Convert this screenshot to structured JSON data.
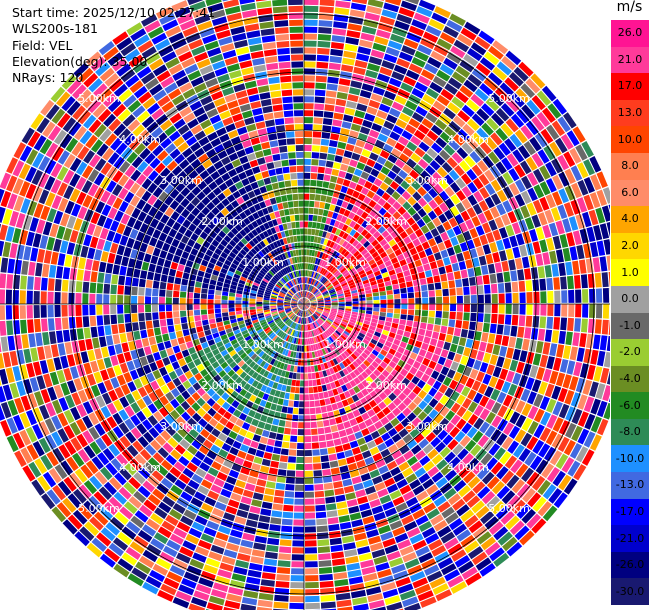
{
  "header": {
    "start_time": "Start time: 2025/12/10 02:27:41",
    "instrument": "WLS200s-181",
    "field": "Field: VEL",
    "elevation": "Elevation(deg): 35.00",
    "nrays": "NRays: 120"
  },
  "colorbar": {
    "unit": "m/s",
    "ticks": [
      "26.0",
      "21.0",
      "17.0",
      "13.0",
      "10.0",
      "8.0",
      "6.0",
      "4.0",
      "2.0",
      "1.0",
      "0.0",
      "-1.0",
      "-2.0",
      "-4.0",
      "-6.0",
      "-8.0",
      "-10.0",
      "-13.0",
      "-17.0",
      "-21.0",
      "-26.0",
      "-30.0"
    ],
    "colors": [
      "#ff1493",
      "#ff3a9a",
      "#ff0000",
      "#ff3c1e",
      "#ff4500",
      "#ff7f50",
      "#ff8c69",
      "#ffa500",
      "#ffd700",
      "#ffff00",
      "#a0a0a0",
      "#696969",
      "#9acd32",
      "#6b8e23",
      "#228b22",
      "#2e8b57",
      "#1e90ff",
      "#4169e1",
      "#0000ff",
      "#0000cd",
      "#000080",
      "#191970"
    ]
  },
  "chart_data": {
    "type": "heatmap",
    "title": "",
    "field": "VEL",
    "units": "m/s",
    "nrays": 120,
    "elevation_deg": 35.0,
    "range_rings_km": [
      1.0,
      2.0,
      3.0,
      4.0,
      5.0
    ],
    "range_ring_labels": [
      "1.00km",
      "2.00km",
      "3.00km",
      "4.00km",
      "5.00km"
    ],
    "max_range_km": 5.6,
    "vmin": -30.0,
    "vmax": 26.0,
    "description_sectors": [
      {
        "azimuth_from": 20,
        "azimuth_to": 80,
        "range_km": [
          0.6,
          2.4
        ],
        "velocity": 21
      },
      {
        "azimuth_from": 100,
        "azimuth_to": 180,
        "range_km": [
          0.3,
          2.6
        ],
        "velocity": 22
      },
      {
        "azimuth_from": 190,
        "azimuth_to": 250,
        "range_km": [
          0.3,
          2.3
        ],
        "velocity": -7
      },
      {
        "azimuth_from": 280,
        "azimuth_to": 340,
        "range_km": [
          0.6,
          3.4
        ],
        "velocity": -24
      },
      {
        "azimuth_from": 345,
        "azimuth_to": 15,
        "range_km": [
          0.4,
          2.2
        ],
        "velocity": -4
      }
    ]
  }
}
